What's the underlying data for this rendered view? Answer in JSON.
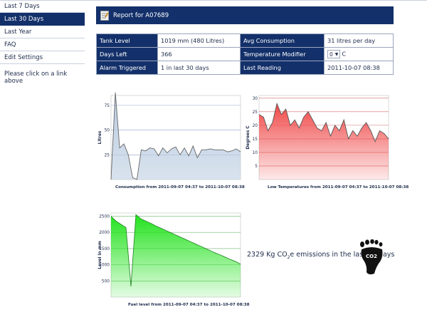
{
  "sidebar": {
    "items": [
      {
        "label": "Last 7 Days",
        "active": false
      },
      {
        "label": "Last 30 Days",
        "active": true
      },
      {
        "label": "Last Year",
        "active": false
      },
      {
        "label": "FAQ",
        "active": false
      },
      {
        "label": "Edit Settings",
        "active": false
      }
    ],
    "hint": "Please click on a link above"
  },
  "header": {
    "title": "Report for A07689",
    "icon": "document-icon"
  },
  "info": {
    "tank_level_label": "Tank Level",
    "tank_level_value": "1019 mm (480 Litres)",
    "avg_consumption_label": "Avg Consumption",
    "avg_consumption_value": "31 litres per day",
    "days_left_label": "Days Left",
    "days_left_value": "366",
    "temp_modifier_label": "Temperature Modifier",
    "temp_modifier_value": "0",
    "temp_modifier_unit": "C",
    "alarm_label": "Alarm Triggered",
    "alarm_value": "1 in last 30 days",
    "last_reading_label": "Last Reading",
    "last_reading_value": "2011-10-07 08:38"
  },
  "co2": {
    "prefix": "2329 Kg CO",
    "sub": "2",
    "suffix": "e emissions in the last 30 days",
    "icon_text": "CO2"
  },
  "chart_data": [
    {
      "type": "area",
      "title": "Consumption from 2011-09-07 04:37 to 2011-10-07 08:38",
      "ylabel": "Litres",
      "ylim": [
        0,
        85
      ],
      "yticks": [
        25,
        50,
        75
      ],
      "grid": true,
      "values": [
        0,
        88,
        32,
        36,
        25,
        2,
        0,
        30,
        29,
        32,
        31,
        24,
        32,
        27,
        31,
        33,
        25,
        32,
        24,
        34,
        22,
        30,
        30,
        31,
        30,
        30,
        30,
        28,
        29,
        31,
        28
      ],
      "color": "#b9cbe0"
    },
    {
      "type": "area",
      "title": "Low Temperatures from 2011-09-07 04:37 to 2011-10-07 08:38",
      "ylabel": "Degrees C",
      "ylim": [
        0,
        31
      ],
      "yticks": [
        5,
        10,
        15,
        20,
        25,
        30
      ],
      "grid": true,
      "values": [
        24,
        23,
        18,
        21,
        28,
        24,
        26,
        20,
        22,
        19,
        23,
        25,
        22,
        19,
        18,
        21,
        16,
        20,
        18,
        22,
        15,
        18,
        16,
        19,
        21,
        18,
        14,
        18,
        17,
        15
      ],
      "color": "#f04848"
    },
    {
      "type": "area",
      "title": "Fuel level from 2011-09-07 04:37 to 2011-10-07 08:38",
      "ylabel": "Level in mm",
      "ylim": [
        0,
        2600
      ],
      "yticks": [
        500,
        1000,
        1500,
        2000,
        2500
      ],
      "grid": true,
      "values": [
        2500,
        2350,
        2250,
        2150,
        330,
        2550,
        2420,
        2350,
        2280,
        2200,
        2130,
        2060,
        1990,
        1920,
        1850,
        1780,
        1710,
        1640,
        1570,
        1500,
        1430,
        1360,
        1300,
        1230,
        1160,
        1100,
        1019
      ],
      "color": "#22e21c"
    }
  ]
}
